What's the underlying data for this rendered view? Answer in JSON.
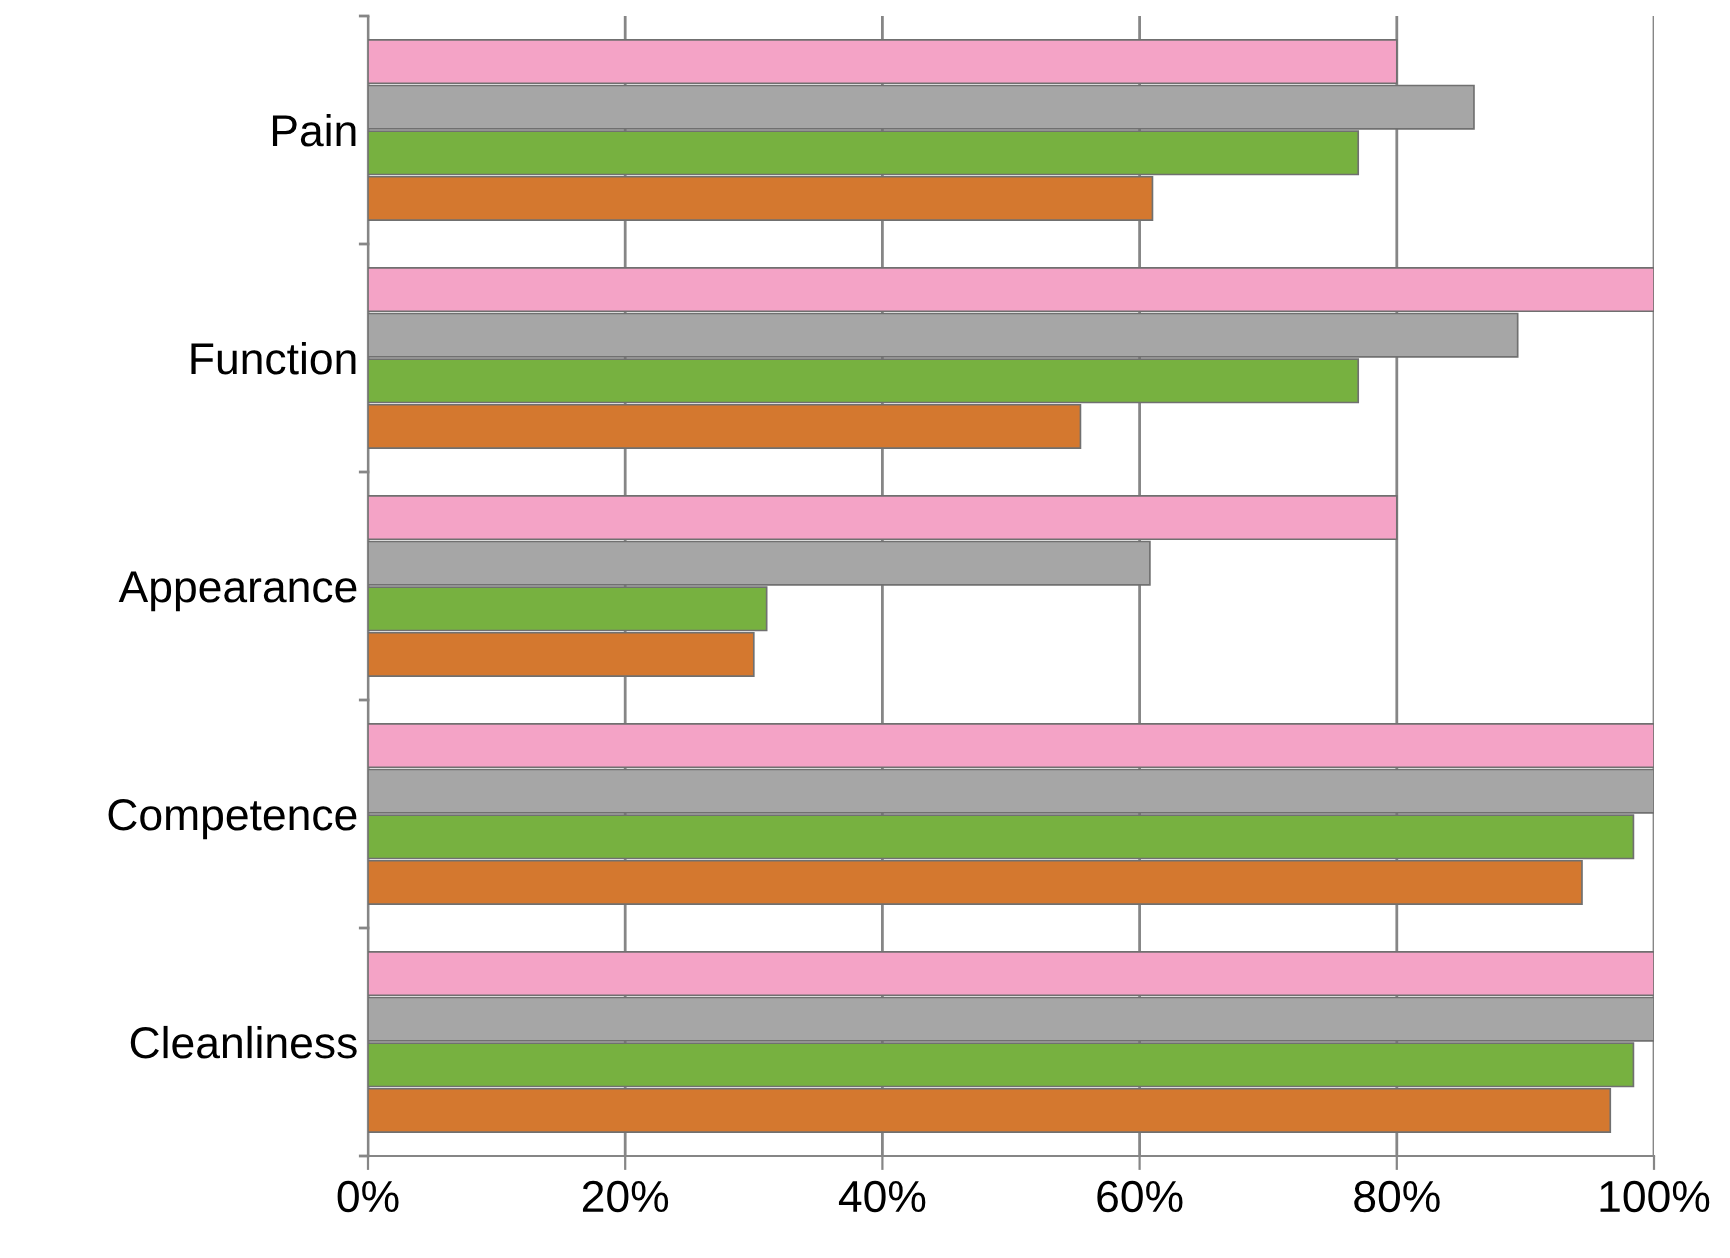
{
  "chart_data": {
    "type": "bar",
    "orientation": "horizontal",
    "categories": [
      "Pain",
      "Function",
      "Appearance",
      "Competence",
      "Cleanliness"
    ],
    "series": [
      {
        "color": "#f4a3c6",
        "values": [
          80,
          100,
          80,
          100,
          100
        ]
      },
      {
        "color": "#a6a6a6",
        "values": [
          86,
          89.4,
          60.8,
          100,
          100
        ]
      },
      {
        "color": "#77b140",
        "values": [
          77,
          77,
          31,
          98.4,
          98.4
        ]
      },
      {
        "color": "#d4782f",
        "values": [
          61,
          55.4,
          30,
          94.4,
          96.6
        ]
      }
    ],
    "xlim": [
      0,
      100
    ],
    "xticks": [
      {
        "value": 0,
        "label": "0%"
      },
      {
        "value": 20,
        "label": "20%"
      },
      {
        "value": 40,
        "label": "40%"
      },
      {
        "value": 60,
        "label": "60%"
      },
      {
        "value": 80,
        "label": "80%"
      },
      {
        "value": 100,
        "label": "100%"
      }
    ],
    "grid": "x"
  }
}
